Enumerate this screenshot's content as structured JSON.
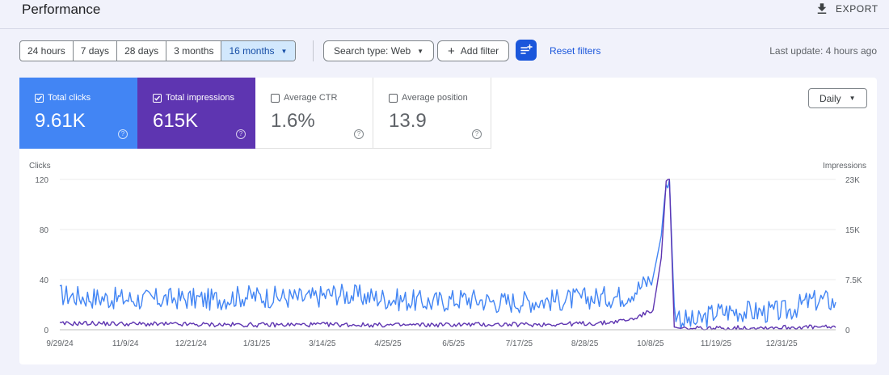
{
  "header": {
    "title": "Performance",
    "export_label": "EXPORT",
    "export_icon": "download-icon"
  },
  "filters": {
    "ranges": [
      {
        "label": "24 hours",
        "selected": false
      },
      {
        "label": "7 days",
        "selected": false
      },
      {
        "label": "28 days",
        "selected": false
      },
      {
        "label": "3 months",
        "selected": false
      },
      {
        "label": "16 months",
        "selected": true
      }
    ],
    "search_type": "Search type: Web",
    "add_filter": "Add filter",
    "reset": "Reset filters",
    "last_update": "Last update: 4 hours ago"
  },
  "metrics": [
    {
      "label": "Total clicks",
      "value": "9.61K",
      "checked": true,
      "color": "#4285f4"
    },
    {
      "label": "Total impressions",
      "value": "615K",
      "checked": true,
      "color": "#5e35b1"
    },
    {
      "label": "Average CTR",
      "value": "1.6%",
      "checked": false
    },
    {
      "label": "Average position",
      "value": "13.9",
      "checked": false
    }
  ],
  "granularity": "Daily",
  "chart_data": {
    "type": "line",
    "x_tick_labels": [
      "9/29/24",
      "11/9/24",
      "12/21/24",
      "1/31/25",
      "3/14/25",
      "4/25/25",
      "6/5/25",
      "7/17/25",
      "8/28/25",
      "10/8/25",
      "11/19/25",
      "12/31/25"
    ],
    "x_range": [
      "2024-09-29",
      "2026-01-18"
    ],
    "y_left": {
      "label": "Clicks",
      "ticks": [
        "0",
        "40",
        "80",
        "120"
      ],
      "range": [
        0,
        120
      ]
    },
    "y_right": {
      "label": "Impressions",
      "ticks": [
        "0",
        "7.5K",
        "15K",
        "23K"
      ],
      "range": [
        0,
        23000
      ]
    },
    "grid": true,
    "series": [
      {
        "name": "Total clicks",
        "axis": "left",
        "color": "#4285f4",
        "x": [
          "2024-09-29",
          "2024-10-15",
          "2024-11-01",
          "2024-11-20",
          "2024-12-10",
          "2024-12-31",
          "2025-01-20",
          "2025-02-10",
          "2025-03-01",
          "2025-03-16",
          "2025-04-01",
          "2025-04-25",
          "2025-05-15",
          "2025-06-05",
          "2025-06-25",
          "2025-07-17",
          "2025-08-05",
          "2025-08-28",
          "2025-09-10",
          "2025-09-20",
          "2025-09-28",
          "2025-10-03",
          "2025-10-06",
          "2025-10-08",
          "2025-10-11",
          "2025-10-16",
          "2025-10-25",
          "2025-11-05",
          "2025-11-19",
          "2025-12-05",
          "2025-12-20",
          "2025-12-31",
          "2026-01-10",
          "2026-01-18"
        ],
        "y": [
          28,
          26,
          25,
          24,
          25,
          24,
          27,
          26,
          25,
          29,
          27,
          24,
          22,
          25,
          22,
          23,
          24,
          26,
          27,
          34,
          42,
          75,
          118,
          120,
          16,
          8,
          6,
          14,
          15,
          14,
          15,
          22,
          24,
          22
        ]
      },
      {
        "name": "Total impressions",
        "axis": "right",
        "color": "#5e35b1",
        "x": [
          "2024-09-29",
          "2024-10-15",
          "2024-11-09",
          "2024-12-21",
          "2025-01-31",
          "2025-03-14",
          "2025-04-25",
          "2025-06-05",
          "2025-07-17",
          "2025-08-28",
          "2025-09-15",
          "2025-09-28",
          "2025-10-03",
          "2025-10-06",
          "2025-10-08",
          "2025-10-11",
          "2025-10-16",
          "2025-11-05",
          "2025-11-19",
          "2025-12-31",
          "2026-01-18"
        ],
        "y": [
          900,
          1000,
          900,
          800,
          750,
          800,
          700,
          800,
          800,
          1000,
          1600,
          3000,
          11000,
          22500,
          23000,
          300,
          150,
          200,
          300,
          400,
          350
        ]
      }
    ]
  }
}
